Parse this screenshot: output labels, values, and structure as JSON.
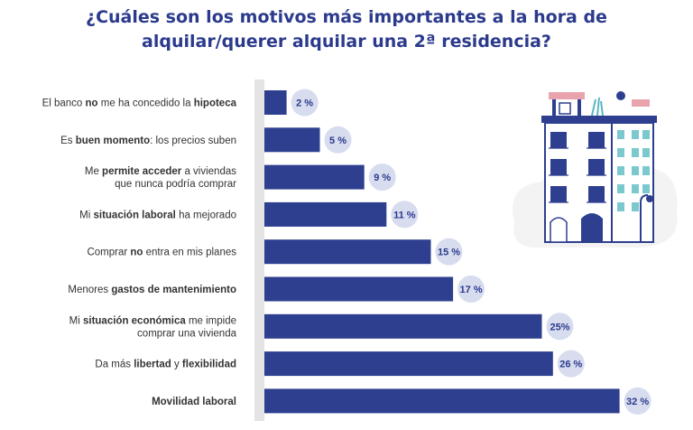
{
  "header": {
    "title_line1": "¿Cuáles son los motivos más importantes a la hora de",
    "title_line2": "alquilar/querer alquilar una 2ª residencia?"
  },
  "colors": {
    "bar": "#2e3f8f",
    "title": "#2b3a8c",
    "bubble": "#d7dcee",
    "axis_band": "#e4e4e4",
    "label_text": "#333333"
  },
  "illustration": {
    "icon": "apartment-building-icon"
  },
  "chart_data": {
    "type": "bar",
    "orientation": "horizontal",
    "title": "¿Cuáles son los motivos más importantes a la hora de alquilar/querer alquilar una 2ª residencia?",
    "unit": "%",
    "xlim": [
      0,
      32
    ],
    "grid": false,
    "legend": "none",
    "categories": [
      "El banco no me ha concedido la hipoteca",
      "Es buen momento: los precios suben",
      "Me permite acceder a viviendas que nunca podría comprar",
      "Mi situación laboral ha mejorado",
      "Comprar no entra en mis planes",
      "Menores gastos de mantenimiento",
      "Mi situación económica me impide comprar una vivienda",
      "Da más libertad y flexibilidad",
      "Movilidad laboral"
    ],
    "category_labels": [
      [
        [
          {
            "t": "El banco ",
            "b": false
          },
          {
            "t": "no",
            "b": true
          },
          {
            "t": " me ha concedido la ",
            "b": false
          },
          {
            "t": "hipoteca",
            "b": true
          }
        ]
      ],
      [
        [
          {
            "t": "Es ",
            "b": false
          },
          {
            "t": "buen momento",
            "b": true
          },
          {
            "t": ": los precios suben",
            "b": false
          }
        ]
      ],
      [
        [
          {
            "t": "Me ",
            "b": false
          },
          {
            "t": "permite acceder",
            "b": true
          },
          {
            "t": " a viviendas",
            "b": false
          }
        ],
        [
          {
            "t": "que nunca podría comprar",
            "b": false
          }
        ]
      ],
      [
        [
          {
            "t": "Mi ",
            "b": false
          },
          {
            "t": "situación laboral",
            "b": true
          },
          {
            "t": " ha mejorado",
            "b": false
          }
        ]
      ],
      [
        [
          {
            "t": "Comprar ",
            "b": false
          },
          {
            "t": "no",
            "b": true
          },
          {
            "t": " entra en mis planes",
            "b": false
          }
        ]
      ],
      [
        [
          {
            "t": "Menores ",
            "b": false
          },
          {
            "t": "gastos de mantenimiento",
            "b": true
          }
        ]
      ],
      [
        [
          {
            "t": "Mi ",
            "b": false
          },
          {
            "t": "situación económica",
            "b": true
          },
          {
            "t": " me impide",
            "b": false
          }
        ],
        [
          {
            "t": "comprar una vivienda",
            "b": false
          }
        ]
      ],
      [
        [
          {
            "t": "Da más ",
            "b": false
          },
          {
            "t": "libertad",
            "b": true
          },
          {
            "t": " y ",
            "b": false
          },
          {
            "t": "flexibilidad",
            "b": true
          }
        ]
      ],
      [
        [
          {
            "t": "Movilidad laboral",
            "b": true
          }
        ]
      ]
    ],
    "values": [
      2,
      5,
      9,
      11,
      15,
      17,
      25,
      26,
      32
    ],
    "value_labels": [
      "2 %",
      "5 %",
      "9 %",
      "11 %",
      "15 %",
      "17 %",
      "25%",
      "26 %",
      "32 %"
    ]
  }
}
